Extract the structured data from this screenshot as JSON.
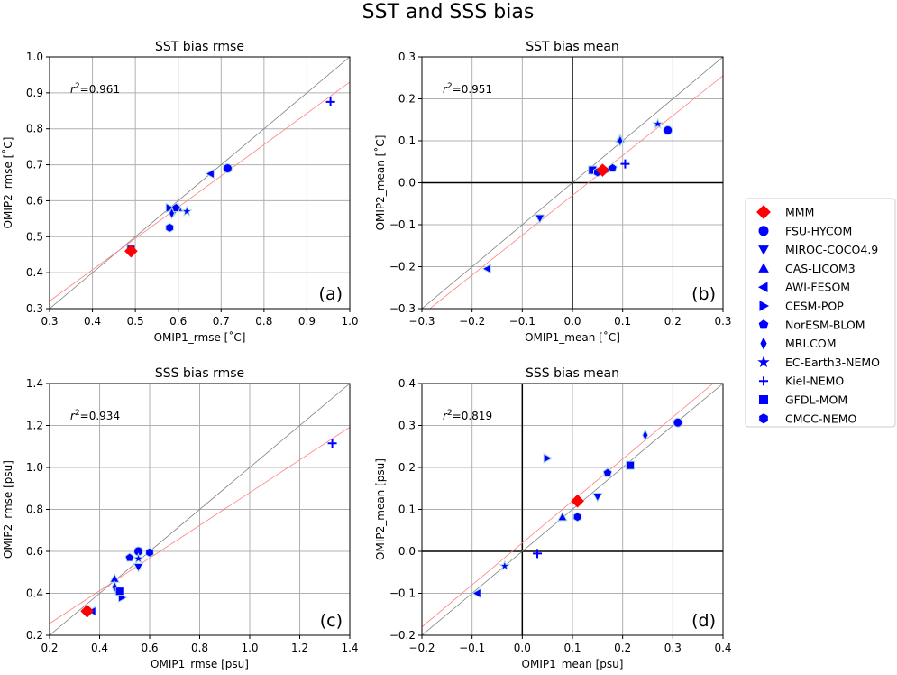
{
  "chart_data": {
    "title": "SST and SSS bias",
    "legend": {
      "placement": "right",
      "entries": [
        {
          "name": "MMM",
          "marker": "diamond",
          "color": "#ff0000"
        },
        {
          "name": "FSU-HYCOM",
          "marker": "circle",
          "color": "#0000ff"
        },
        {
          "name": "MIROC-COCO4.9",
          "marker": "triangle-down",
          "color": "#0000ff"
        },
        {
          "name": "CAS-LICOM3",
          "marker": "triangle-up",
          "color": "#0000ff"
        },
        {
          "name": "AWI-FESOM",
          "marker": "triangle-left",
          "color": "#0000ff"
        },
        {
          "name": "CESM-POP",
          "marker": "triangle-right",
          "color": "#0000ff"
        },
        {
          "name": "NorESM-BLOM",
          "marker": "pentagon",
          "color": "#0000ff"
        },
        {
          "name": "MRI.COM",
          "marker": "thin-diamond",
          "color": "#0000ff"
        },
        {
          "name": "EC-Earth3-NEMO",
          "marker": "star",
          "color": "#0000ff"
        },
        {
          "name": "Kiel-NEMO",
          "marker": "plus",
          "color": "#0000ff"
        },
        {
          "name": "GFDL-MOM",
          "marker": "square",
          "color": "#0000ff"
        },
        {
          "name": "CMCC-NEMO",
          "marker": "hexagon",
          "color": "#0000ff"
        }
      ]
    },
    "panels": [
      {
        "type": "scatter",
        "title": "SST bias rmse",
        "label": "(a)",
        "xlabel": "OMIP1_rmse [$^{\\circ}$C]",
        "ylabel": "OMIP2_rmse [$^{\\circ}$C]",
        "xlabel_text": "OMIP1_rmse [˚C]",
        "ylabel_text": "OMIP2_rmse [˚C]",
        "xlim": [
          0.3,
          1.0
        ],
        "ylim": [
          0.3,
          1.0
        ],
        "xticks": [
          "0.3",
          "0.4",
          "0.5",
          "0.6",
          "0.7",
          "0.8",
          "0.9",
          "1.0"
        ],
        "yticks": [
          "0.3",
          "0.4",
          "0.5",
          "0.6",
          "0.7",
          "0.8",
          "0.9",
          "1.0"
        ],
        "r2": "=0.961",
        "fit": {
          "slope": 0.87,
          "intercept": 0.06
        },
        "zero_lines": false,
        "x": [
          0.49,
          0.715,
          0.59,
          0.6,
          0.675,
          0.58,
          0.595,
          0.585,
          0.62,
          0.955,
          0.49,
          0.58
        ],
        "y": [
          0.46,
          0.69,
          0.57,
          0.58,
          0.675,
          0.58,
          0.58,
          0.565,
          0.57,
          0.875,
          0.465,
          0.525
        ]
      },
      {
        "type": "scatter",
        "title": "SST bias mean",
        "label": "(b)",
        "xlabel_text": "OMIP1_mean [˚C]",
        "ylabel_text": "OMIP2_mean [˚C]",
        "xlim": [
          -0.3,
          0.3
        ],
        "ylim": [
          -0.3,
          0.3
        ],
        "xticks": [
          "−0.3",
          "−0.2",
          "−0.1",
          "0.0",
          "0.1",
          "0.2",
          "0.3"
        ],
        "yticks": [
          "−0.3",
          "−0.2",
          "−0.1",
          "0.0",
          "0.1",
          "0.2",
          "0.3"
        ],
        "r2": "=0.951",
        "fit": {
          "slope": 0.95,
          "intercept": -0.03
        },
        "zero_lines": true,
        "x": [
          0.06,
          0.19,
          -0.065,
          0.095,
          -0.17,
          0.07,
          0.08,
          0.095,
          0.17,
          0.105,
          0.04,
          0.05
        ],
        "y": [
          0.03,
          0.125,
          -0.085,
          0.105,
          -0.205,
          0.03,
          0.035,
          0.1,
          0.14,
          0.045,
          0.03,
          0.025
        ]
      },
      {
        "type": "scatter",
        "title": "SSS bias rmse",
        "label": "(c)",
        "xlabel_text": "OMIP1_rmse [psu]",
        "ylabel_text": "OMIP2_rmse [psu]",
        "xlim": [
          0.2,
          1.4
        ],
        "ylim": [
          0.2,
          1.4
        ],
        "xticks": [
          "0.2",
          "0.4",
          "0.6",
          "0.8",
          "1.0",
          "1.2",
          "1.4"
        ],
        "yticks": [
          "0.2",
          "0.4",
          "0.6",
          "0.8",
          "1.0",
          "1.2",
          "1.4"
        ],
        "r2": "=0.934",
        "fit": {
          "slope": 0.78,
          "intercept": 0.1
        },
        "zero_lines": false,
        "x": [
          0.35,
          0.555,
          0.555,
          0.46,
          0.37,
          0.49,
          0.52,
          0.46,
          0.555,
          1.33,
          0.48,
          0.6
        ],
        "y": [
          0.315,
          0.6,
          0.525,
          0.47,
          0.315,
          0.38,
          0.57,
          0.43,
          0.565,
          1.115,
          0.41,
          0.595
        ]
      },
      {
        "type": "scatter",
        "title": "SSS bias mean",
        "label": "(d)",
        "xlabel_text": "OMIP1_mean [psu]",
        "ylabel_text": "OMIP2_mean [psu]",
        "xlim": [
          -0.2,
          0.4
        ],
        "ylim": [
          -0.2,
          0.4
        ],
        "xticks": [
          "−0.2",
          "−0.1",
          "0.0",
          "0.1",
          "0.2",
          "0.3",
          "0.4"
        ],
        "yticks": [
          "−0.2",
          "−0.1",
          "0.0",
          "0.1",
          "0.2",
          "0.3",
          "0.4"
        ],
        "r2": "=0.819",
        "fit": {
          "slope": 1.0,
          "intercept": 0.02
        },
        "zero_lines": true,
        "x": [
          0.11,
          0.31,
          0.15,
          0.08,
          -0.09,
          0.05,
          0.17,
          0.245,
          -0.035,
          0.03,
          0.215,
          0.11
        ],
        "y": [
          0.12,
          0.307,
          0.13,
          0.082,
          -0.1,
          0.222,
          0.187,
          0.277,
          -0.035,
          -0.005,
          0.205,
          0.082
        ]
      }
    ]
  }
}
